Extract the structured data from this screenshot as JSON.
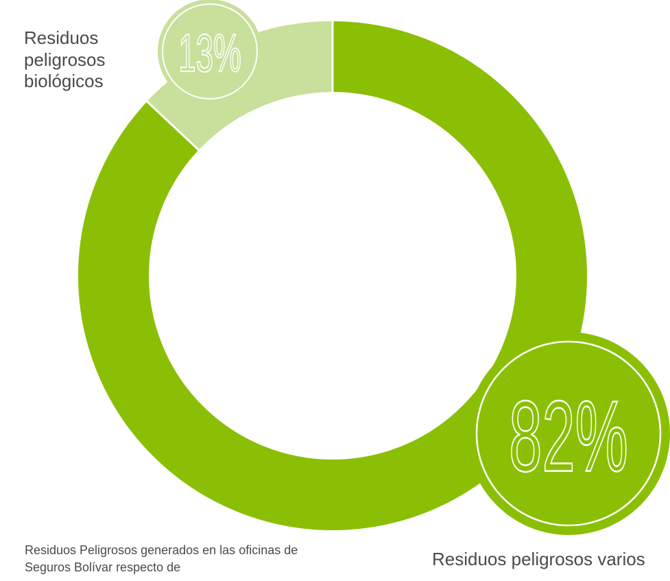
{
  "chart_data": {
    "type": "pie",
    "slices": [
      {
        "label": "Residuos peligrosos biológicos",
        "label_lines": [
          "Residuos",
          "peligrosos",
          "biológicos"
        ],
        "value": 13,
        "display": "13%",
        "color": "#c8e09b"
      },
      {
        "label": "Residuos peligrosos varios",
        "value": 82,
        "display": "82%",
        "color": "#8bbf05"
      }
    ],
    "caption": "Residuos Peligrosos generados en las oficinas de Seguros Bolívar respecto de",
    "colors": {
      "ring_background": "#8bbf05",
      "label_text": "#4a4a4a",
      "divider": "#ffffff"
    }
  }
}
